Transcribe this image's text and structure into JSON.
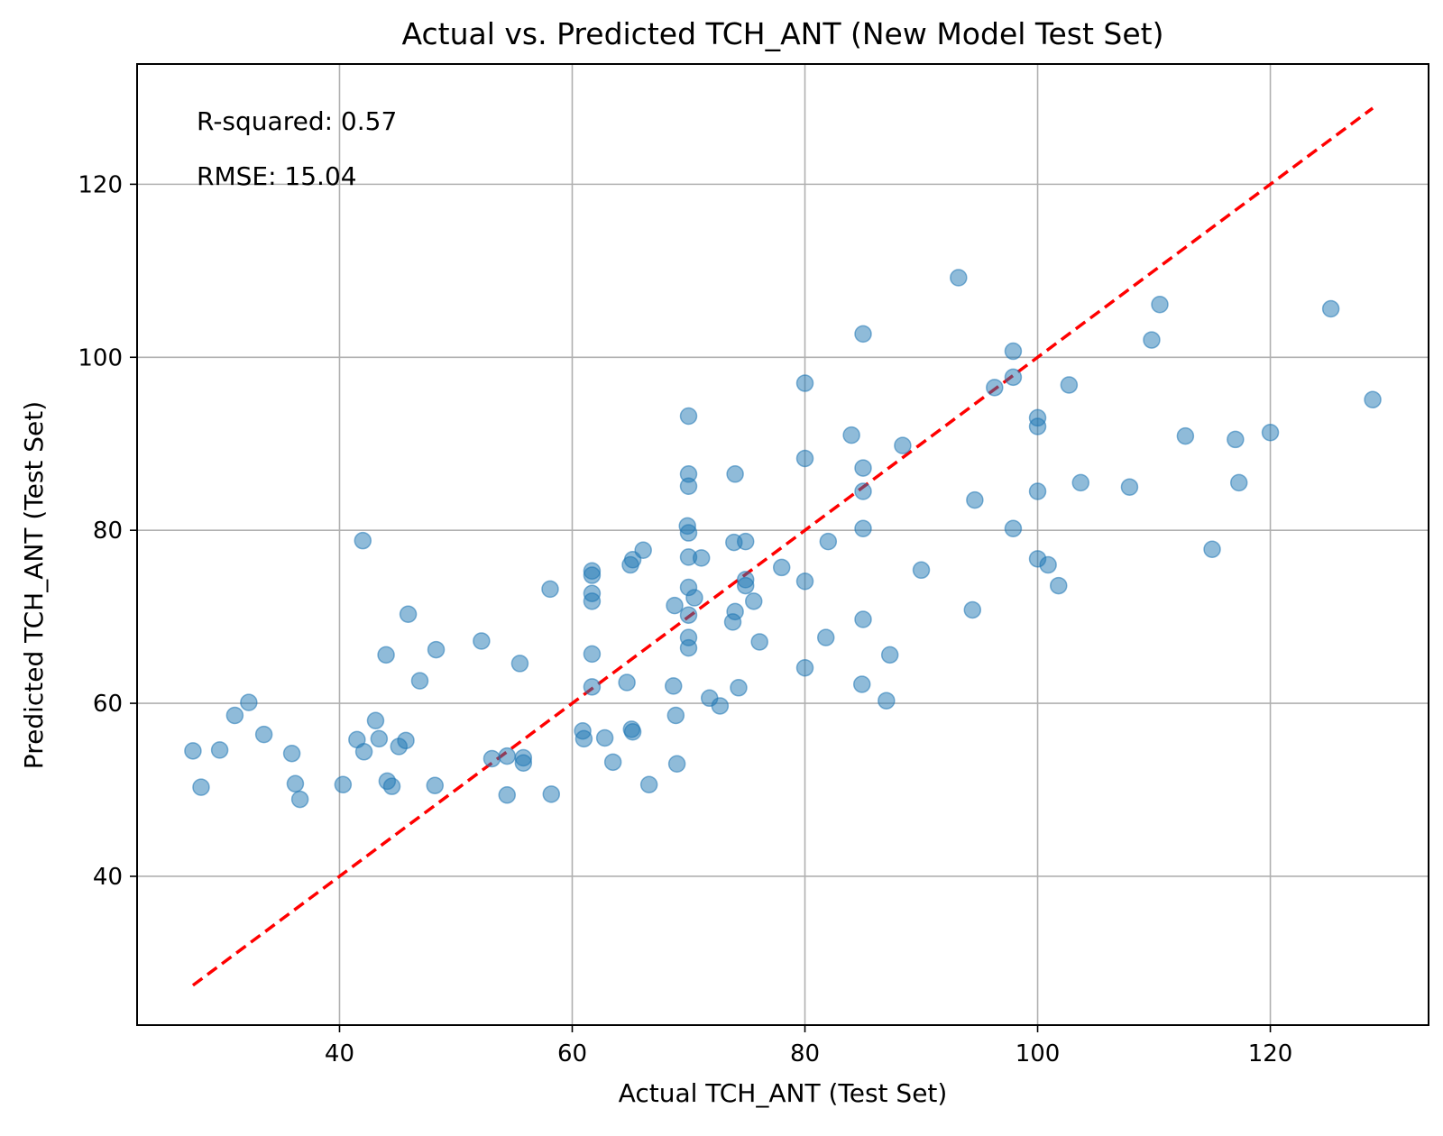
{
  "chart_data": {
    "type": "scatter",
    "title": "Actual vs. Predicted TCH_ANT (New Model Test Set)",
    "xlabel": "Actual TCH_ANT (Test Set)",
    "ylabel": "Predicted TCH_ANT (Test Set)",
    "xlim": [
      22.6,
      133.6
    ],
    "ylim": [
      22.8,
      133.9
    ],
    "xticks": [
      "40",
      "60",
      "80",
      "100",
      "120"
    ],
    "xtick_values": [
      40,
      60,
      80,
      100,
      120
    ],
    "yticks": [
      "40",
      "60",
      "80",
      "100",
      "120"
    ],
    "ytick_values": [
      40,
      60,
      80,
      100,
      120
    ],
    "grid": true,
    "annotations": [
      "R-squared: 0.57",
      "RMSE: 15.04"
    ],
    "colors": {
      "points": "#1f77b4",
      "reference_line": "#ff0000",
      "grid": "#b0b0b0"
    },
    "reference_line": {
      "style": "dashed",
      "x": [
        27.4,
        128.8
      ],
      "y": [
        27.4,
        128.8
      ]
    },
    "series": [
      {
        "marker": "circle",
        "opacity": 0.5,
        "points": [
          {
            "x": 27.4,
            "y": 54.5
          },
          {
            "x": 28.1,
            "y": 50.3
          },
          {
            "x": 29.7,
            "y": 54.6
          },
          {
            "x": 31.0,
            "y": 58.6
          },
          {
            "x": 32.2,
            "y": 60.1
          },
          {
            "x": 33.5,
            "y": 56.4
          },
          {
            "x": 35.9,
            "y": 54.2
          },
          {
            "x": 36.2,
            "y": 50.7
          },
          {
            "x": 36.6,
            "y": 48.9
          },
          {
            "x": 40.3,
            "y": 50.6
          },
          {
            "x": 41.5,
            "y": 55.8
          },
          {
            "x": 42.0,
            "y": 78.8
          },
          {
            "x": 42.1,
            "y": 54.4
          },
          {
            "x": 43.1,
            "y": 58.0
          },
          {
            "x": 43.4,
            "y": 55.9
          },
          {
            "x": 44.0,
            "y": 65.6
          },
          {
            "x": 44.1,
            "y": 51.0
          },
          {
            "x": 44.5,
            "y": 50.4
          },
          {
            "x": 45.1,
            "y": 55.0
          },
          {
            "x": 45.7,
            "y": 55.7
          },
          {
            "x": 45.9,
            "y": 70.3
          },
          {
            "x": 46.9,
            "y": 62.6
          },
          {
            "x": 48.2,
            "y": 50.5
          },
          {
            "x": 48.3,
            "y": 66.2
          },
          {
            "x": 52.2,
            "y": 67.2
          },
          {
            "x": 53.1,
            "y": 53.6
          },
          {
            "x": 54.4,
            "y": 53.9
          },
          {
            "x": 54.4,
            "y": 49.4
          },
          {
            "x": 55.5,
            "y": 64.6
          },
          {
            "x": 55.8,
            "y": 53.7
          },
          {
            "x": 55.8,
            "y": 53.1
          },
          {
            "x": 58.1,
            "y": 73.2
          },
          {
            "x": 58.2,
            "y": 49.5
          },
          {
            "x": 60.9,
            "y": 56.8
          },
          {
            "x": 61.0,
            "y": 55.9
          },
          {
            "x": 61.7,
            "y": 75.3
          },
          {
            "x": 61.7,
            "y": 74.8
          },
          {
            "x": 61.7,
            "y": 72.7
          },
          {
            "x": 61.7,
            "y": 71.8
          },
          {
            "x": 61.7,
            "y": 65.7
          },
          {
            "x": 61.7,
            "y": 61.9
          },
          {
            "x": 62.8,
            "y": 56.0
          },
          {
            "x": 63.5,
            "y": 53.2
          },
          {
            "x": 64.7,
            "y": 62.4
          },
          {
            "x": 65.0,
            "y": 76.0
          },
          {
            "x": 65.2,
            "y": 76.6
          },
          {
            "x": 65.1,
            "y": 57.0
          },
          {
            "x": 65.2,
            "y": 56.7
          },
          {
            "x": 66.1,
            "y": 77.7
          },
          {
            "x": 66.6,
            "y": 50.6
          },
          {
            "x": 68.7,
            "y": 62.0
          },
          {
            "x": 68.8,
            "y": 71.3
          },
          {
            "x": 68.9,
            "y": 58.6
          },
          {
            "x": 69.0,
            "y": 53.0
          },
          {
            "x": 69.9,
            "y": 80.5
          },
          {
            "x": 70.0,
            "y": 93.2
          },
          {
            "x": 70.0,
            "y": 86.5
          },
          {
            "x": 70.0,
            "y": 85.1
          },
          {
            "x": 70.0,
            "y": 79.7
          },
          {
            "x": 70.0,
            "y": 76.9
          },
          {
            "x": 70.0,
            "y": 73.4
          },
          {
            "x": 70.0,
            "y": 70.2
          },
          {
            "x": 70.0,
            "y": 67.6
          },
          {
            "x": 70.0,
            "y": 66.4
          },
          {
            "x": 70.5,
            "y": 72.2
          },
          {
            "x": 71.1,
            "y": 76.8
          },
          {
            "x": 71.8,
            "y": 60.6
          },
          {
            "x": 72.7,
            "y": 59.7
          },
          {
            "x": 73.8,
            "y": 69.4
          },
          {
            "x": 73.9,
            "y": 78.6
          },
          {
            "x": 74.0,
            "y": 86.5
          },
          {
            "x": 74.0,
            "y": 70.6
          },
          {
            "x": 74.3,
            "y": 61.8
          },
          {
            "x": 74.9,
            "y": 78.7
          },
          {
            "x": 74.9,
            "y": 74.3
          },
          {
            "x": 74.9,
            "y": 73.6
          },
          {
            "x": 75.6,
            "y": 71.8
          },
          {
            "x": 76.1,
            "y": 67.1
          },
          {
            "x": 78.0,
            "y": 75.7
          },
          {
            "x": 80.0,
            "y": 97.0
          },
          {
            "x": 80.0,
            "y": 88.3
          },
          {
            "x": 80.0,
            "y": 74.1
          },
          {
            "x": 80.0,
            "y": 64.1
          },
          {
            "x": 81.8,
            "y": 67.6
          },
          {
            "x": 82.0,
            "y": 78.7
          },
          {
            "x": 84.0,
            "y": 91.0
          },
          {
            "x": 84.9,
            "y": 62.2
          },
          {
            "x": 85.0,
            "y": 102.7
          },
          {
            "x": 85.0,
            "y": 87.2
          },
          {
            "x": 85.0,
            "y": 84.5
          },
          {
            "x": 85.0,
            "y": 80.2
          },
          {
            "x": 85.0,
            "y": 69.7
          },
          {
            "x": 87.0,
            "y": 60.3
          },
          {
            "x": 87.3,
            "y": 65.6
          },
          {
            "x": 88.4,
            "y": 89.8
          },
          {
            "x": 90.0,
            "y": 75.4
          },
          {
            "x": 93.2,
            "y": 109.2
          },
          {
            "x": 94.4,
            "y": 70.8
          },
          {
            "x": 94.6,
            "y": 83.5
          },
          {
            "x": 96.3,
            "y": 96.5
          },
          {
            "x": 97.9,
            "y": 100.7
          },
          {
            "x": 97.9,
            "y": 97.7
          },
          {
            "x": 97.9,
            "y": 80.2
          },
          {
            "x": 100.0,
            "y": 93.0
          },
          {
            "x": 100.0,
            "y": 92.0
          },
          {
            "x": 100.0,
            "y": 84.5
          },
          {
            "x": 100.0,
            "y": 76.7
          },
          {
            "x": 100.9,
            "y": 76.0
          },
          {
            "x": 101.8,
            "y": 73.6
          },
          {
            "x": 102.7,
            "y": 96.8
          },
          {
            "x": 103.7,
            "y": 85.5
          },
          {
            "x": 107.9,
            "y": 85.0
          },
          {
            "x": 109.8,
            "y": 102.0
          },
          {
            "x": 110.5,
            "y": 106.1
          },
          {
            "x": 112.7,
            "y": 90.9
          },
          {
            "x": 115.0,
            "y": 77.8
          },
          {
            "x": 117.0,
            "y": 90.5
          },
          {
            "x": 117.3,
            "y": 85.5
          },
          {
            "x": 120.0,
            "y": 91.3
          },
          {
            "x": 125.2,
            "y": 105.6
          },
          {
            "x": 128.8,
            "y": 95.1
          }
        ]
      }
    ]
  }
}
